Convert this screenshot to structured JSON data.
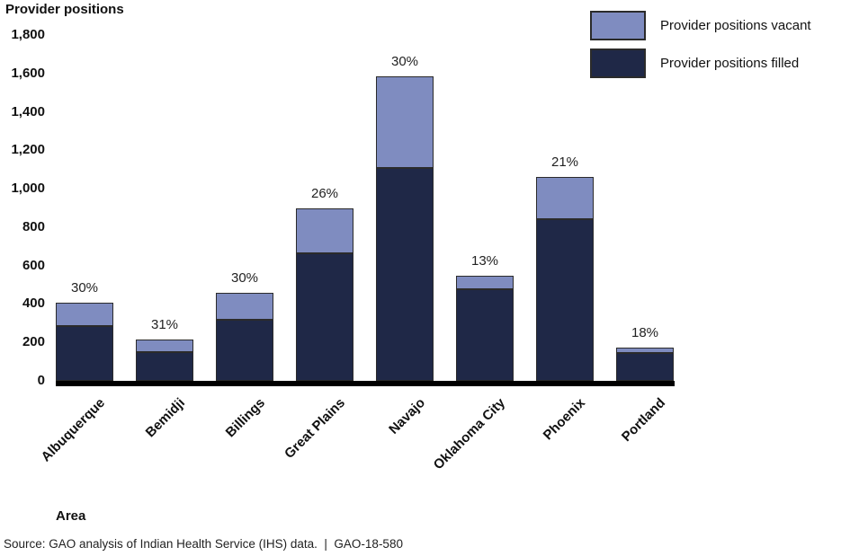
{
  "page": {
    "title": "Provider positions",
    "area_label": "Area",
    "source_note": "Source: GAO analysis of Indian Health Service (IHS) data.  |  GAO-18-580"
  },
  "colors": {
    "vacant": "#7f8cc0",
    "filled": "#1f2847",
    "bar_border": "#2b2b2b",
    "axis": "#000000"
  },
  "chart_data": {
    "type": "bar",
    "subtype": "stacked",
    "title": "Provider positions",
    "xlabel": "Area",
    "ylabel": "Provider positions",
    "ylim": [
      0,
      1800
    ],
    "ytick_step": 200,
    "grid": false,
    "legend_position": "top-right",
    "categories": [
      "Albuquerque",
      "Bemidji",
      "Billings",
      "Great Plains",
      "Navajo",
      "Oklahoma City",
      "Phoenix",
      "Portland"
    ],
    "series": [
      {
        "name": "Provider positions filled",
        "color": "#1f2847",
        "values": [
          285,
          148,
          320,
          665,
          1110,
          475,
          840,
          143
        ]
      },
      {
        "name": "Provider positions vacant",
        "color": "#7f8cc0",
        "values": [
          120,
          67,
          140,
          235,
          475,
          70,
          220,
          32
        ]
      }
    ],
    "totals": [
      405,
      215,
      460,
      900,
      1585,
      545,
      1060,
      175
    ],
    "bar_labels": [
      "30%",
      "31%",
      "30%",
      "26%",
      "30%",
      "13%",
      "21%",
      "18%"
    ]
  }
}
